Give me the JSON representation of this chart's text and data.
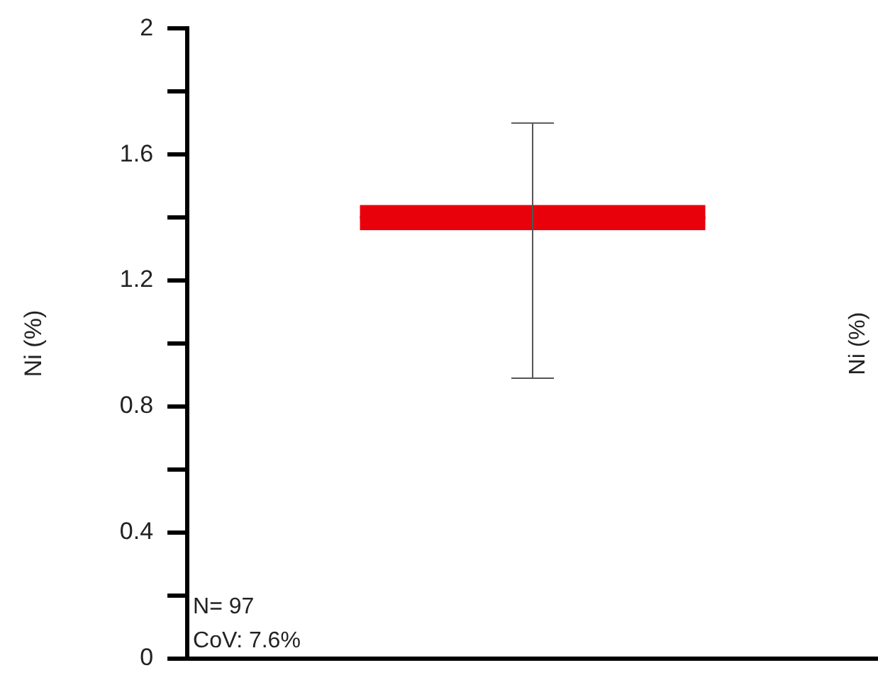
{
  "chart_data": {
    "type": "box",
    "ylabel": "Ni (%)",
    "categories": [
      null
    ],
    "boxes": [
      {
        "low": 0.89,
        "q1": 1.36,
        "median": 1.4,
        "q3": 1.44,
        "high": 1.7
      }
    ],
    "color": "#e8000b",
    "ylim": [
      0,
      2
    ],
    "yticks": [
      0,
      {
        "value": 0.2,
        "label": null
      },
      0.4,
      {
        "value": 0.6,
        "label": null
      },
      0.8,
      {
        "value": 1,
        "label": null
      },
      1.2,
      {
        "value": 1.4,
        "label": null
      },
      1.6,
      {
        "value": 1.8,
        "label": null
      },
      2
    ],
    "annotations": [
      "N= 97",
      "CoV: 7.6%",
      "Ni (%)"
    ],
    "grid": false,
    "legend": false
  }
}
